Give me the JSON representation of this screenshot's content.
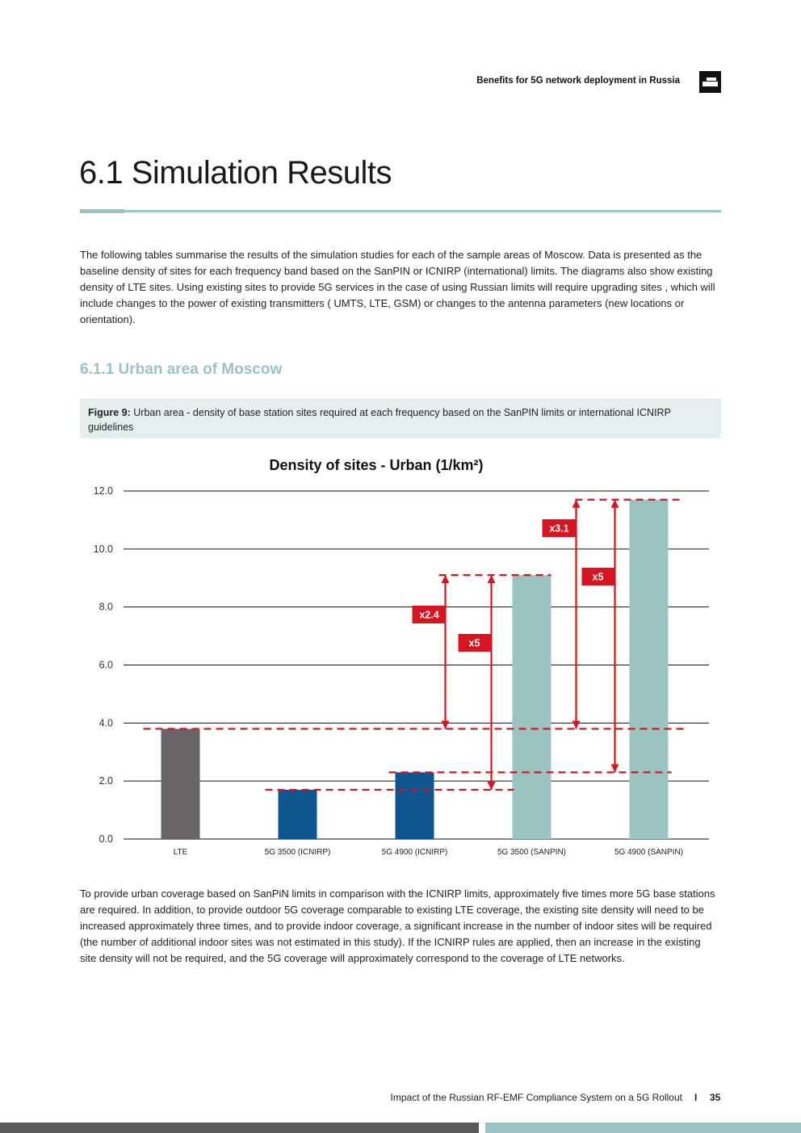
{
  "header": {
    "title": "Benefits for 5G network deployment in Russia",
    "logo_icon": "building-logo-icon"
  },
  "section": {
    "title": "6.1 Simulation Results",
    "intro": "The following tables summarise the results of the simulation studies for each of the sample areas of Moscow. Data is presented as the baseline density of sites for each frequency band based on the SanPIN or ICNIRP (international) limits. The diagrams also show existing density of LTE sites. Using existing sites to provide 5G services in the case of using Russian limits will require upgrading sites , which will include changes to the power of existing transmitters ( UMTS, LTE, GSM) or changes to the antenna parameters (new locations or orientation).",
    "subsection_title": "6.1.1 Urban area of Moscow",
    "figure_label": "Figure 9:",
    "figure_caption": " Urban area - density of base station sites required at each frequency based on the SanPIN limits or international ICNIRP guidelines",
    "conclusion": "To provide urban coverage based on SanPiN limits in comparison with the ICNIRP limits, approximately five times more 5G base stations are required. In addition, to provide outdoor 5G coverage comparable to existing LTE coverage, the existing site density will need to be increased approximately three times, and to provide indoor coverage, a significant increase in the number of indoor sites will be required (the number of additional indoor sites was not estimated in this study). If the ICNIRP rules are applied, then an increase in the existing site density will not be required, and the 5G coverage will approximately correspond to the coverage of LTE networks."
  },
  "chart_data": {
    "type": "bar",
    "title": "Density of sites - Urban (1/km²)",
    "categories": [
      "LTE",
      "5G 3500 (ICNIRP)",
      "5G 4900 (ICNIRP)",
      "5G 3500 (SANPIN)",
      "5G 4900 (SANPIN)"
    ],
    "values": [
      3.8,
      1.7,
      2.3,
      9.1,
      11.7
    ],
    "colors": [
      "#6a6568",
      "#0f5590",
      "#0f5590",
      "#9bc3c1",
      "#9bc3c1"
    ],
    "ylim": [
      0,
      12
    ],
    "yticks": [
      "0.0",
      "2.0",
      "4.0",
      "6.0",
      "8.0",
      "10.0",
      "12.0"
    ],
    "grid": true,
    "annotations": [
      {
        "label": "x2.4",
        "from": 3.8,
        "to": 9.1,
        "near": "5G 3500 (SANPIN)"
      },
      {
        "label": "x5",
        "from": 1.7,
        "to": 9.1,
        "near": "5G 3500 (SANPIN)"
      },
      {
        "label": "x3.1",
        "from": 3.8,
        "to": 11.7,
        "near": "5G 4900 (SANPIN)"
      },
      {
        "label": "x5",
        "from": 2.3,
        "to": 11.7,
        "near": "5G 4900 (SANPIN)"
      }
    ],
    "annotation_color": "#d7141f"
  },
  "footer": {
    "text": "Impact of the Russian RF-EMF Compliance System on a 5G Rollout",
    "separator": "I",
    "page": "35"
  }
}
